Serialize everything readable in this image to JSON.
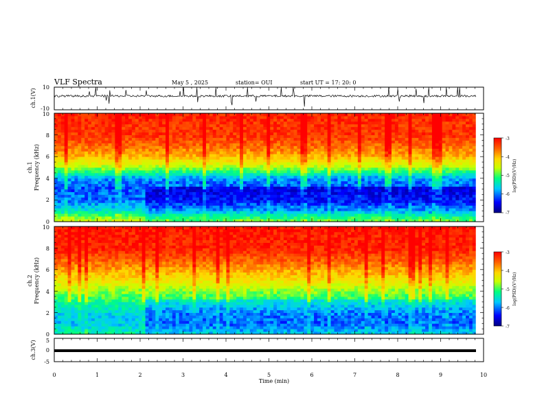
{
  "header": {
    "title": "VLF Spectra",
    "date": "May 5  , 2025",
    "station": "station= OUI",
    "start_ut": "start  UT  =    17: 20: 0"
  },
  "colors": {
    "colormap": [
      "#000080",
      "#0000ff",
      "#00c8ff",
      "#00ff80",
      "#c8ff00",
      "#ffd700",
      "#ff6000",
      "#ff0000"
    ],
    "trace": "#000000",
    "axis": "#000000"
  },
  "chart_data": [
    {
      "type": "line",
      "panel": "ch1-waveform",
      "ylabel": "ch.1(V)",
      "ylim": [
        -10,
        10
      ],
      "yticks": [
        "10",
        "-10"
      ],
      "xlim": [
        0,
        10
      ],
      "series": [
        {
          "values_description_visible": "",
          "baseline": 2.2,
          "spike_range": [
            -6,
            10
          ]
        }
      ]
    },
    {
      "type": "heatmap",
      "panel": "ch1-spectrogram",
      "ylabel": "ch.1\nFrequency (kHz)",
      "ylabel_line1": "ch.1",
      "ylabel_line2": "Frequency  (kHz)",
      "ylim": [
        0,
        10
      ],
      "yticks": [
        "0",
        "2",
        "4",
        "6",
        "8",
        "10"
      ],
      "xlim": [
        0,
        10
      ],
      "colorbar": {
        "range": [
          -7,
          -3
        ],
        "ticks": [
          "-3",
          "-4",
          "-5",
          "-6",
          "-7"
        ],
        "label": "log(PSD)(V²/Hz)"
      },
      "low_noise_band_start_min": 2.15,
      "level_profile": [
        [
          0,
          -4.6
        ],
        [
          0.5,
          -5.0
        ],
        [
          1,
          -5.6
        ],
        [
          2,
          -6.1
        ],
        [
          3,
          -6.2
        ],
        [
          4,
          -6.0
        ],
        [
          5,
          -4.8
        ],
        [
          6,
          -4.0
        ],
        [
          7,
          -3.6
        ],
        [
          8,
          -3.3
        ],
        [
          9,
          -3.3
        ],
        [
          10,
          -3.2
        ]
      ]
    },
    {
      "type": "heatmap",
      "panel": "ch2-spectrogram",
      "ylabel_line1": "ch.2",
      "ylabel_line2": "Frequency  (kHz)",
      "ylim": [
        0,
        10
      ],
      "yticks": [
        "0",
        "2",
        "4",
        "6",
        "8",
        "10"
      ],
      "xlim": [
        0,
        10
      ],
      "colorbar": {
        "range": [
          -7,
          -3
        ],
        "ticks": [
          "-3",
          "-4",
          "-5",
          "-6",
          "-7"
        ],
        "label": "log(PSD)(V²/Hz)"
      },
      "low_noise_band_start_min": 2.15,
      "level_profile": [
        [
          0,
          -5.4
        ],
        [
          0.5,
          -5.6
        ],
        [
          1,
          -5.8
        ],
        [
          2,
          -5.7
        ],
        [
          3,
          -5.3
        ],
        [
          4,
          -4.9
        ],
        [
          5,
          -4.3
        ],
        [
          6,
          -3.9
        ],
        [
          7,
          -3.5
        ],
        [
          8,
          -3.2
        ],
        [
          9,
          -3.2
        ],
        [
          10,
          -3.1
        ]
      ]
    },
    {
      "type": "line",
      "panel": "ch3-waveform",
      "ylabel": "ch.3(V)",
      "ylim": [
        -5,
        5
      ],
      "yticks": [
        "5",
        "0",
        "-5"
      ],
      "xlim": [
        0,
        10
      ],
      "series": [
        {
          "constant_value": 0.0
        }
      ]
    }
  ],
  "xaxis": {
    "label": "Time  (min)",
    "ticks": [
      "0",
      "1",
      "2",
      "3",
      "4",
      "5",
      "6",
      "7",
      "8",
      "9",
      "10"
    ],
    "data_end_min": 9.82
  }
}
